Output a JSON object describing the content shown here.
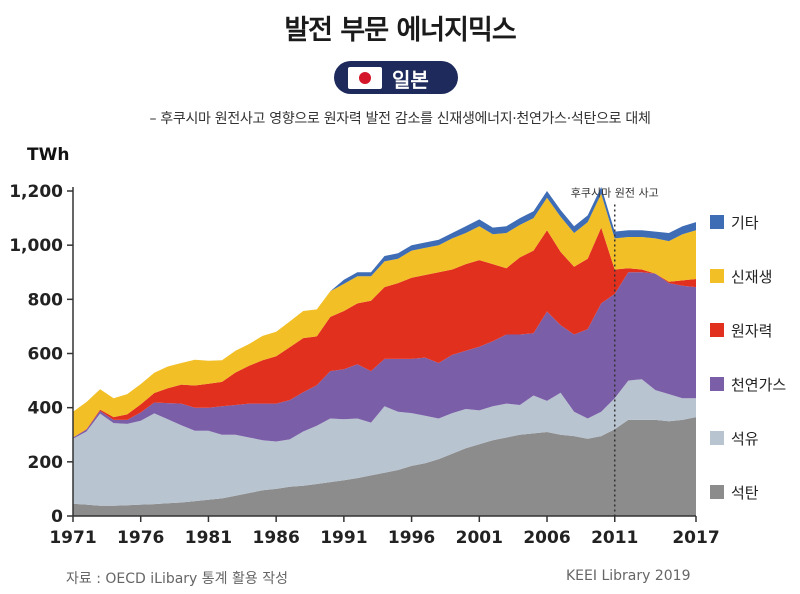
{
  "title": "발전 부문 에너지믹스",
  "badge": {
    "country": "일본",
    "flag": "japan-flag-icon"
  },
  "subtitle": "– 후쿠시마 원전사고 영향으로 원자력 발전 감소를 신재생에너지·천연가스·석탄으로 대체",
  "unit": "TWh",
  "source": "자료 : OECD iLibary  통계 활용 작성",
  "credit": "KEEI Library 2019",
  "chart_data": {
    "type": "area",
    "stacked": true,
    "x": [
      1971,
      1972,
      1973,
      1974,
      1975,
      1976,
      1977,
      1978,
      1979,
      1980,
      1981,
      1982,
      1983,
      1984,
      1985,
      1986,
      1987,
      1988,
      1989,
      1990,
      1991,
      1992,
      1993,
      1994,
      1995,
      1996,
      1997,
      1998,
      1999,
      2000,
      2001,
      2002,
      2003,
      2004,
      2005,
      2006,
      2007,
      2008,
      2009,
      2010,
      2011,
      2012,
      2013,
      2014,
      2015,
      2016,
      2017
    ],
    "xticks": [
      "1971",
      "1976",
      "1981",
      "1986",
      "1991",
      "1996",
      "2001",
      "2006",
      "2011",
      "2017"
    ],
    "ylim": [
      0,
      1200
    ],
    "yticks": [
      "0",
      "200",
      "400",
      "600",
      "800",
      "1,000",
      "1,200"
    ],
    "annotation": {
      "label": "후쿠시마 원전 사고",
      "x": 2011
    },
    "series": [
      {
        "name": "석탄",
        "color": "#8c8c8c",
        "values": [
          45,
          42,
          38,
          38,
          40,
          42,
          44,
          47,
          50,
          55,
          60,
          65,
          75,
          85,
          95,
          100,
          108,
          112,
          118,
          125,
          132,
          140,
          150,
          160,
          170,
          185,
          195,
          210,
          230,
          250,
          265,
          280,
          290,
          300,
          305,
          310,
          300,
          295,
          285,
          295,
          320,
          355,
          355,
          355,
          350,
          355,
          365
        ]
      },
      {
        "name": "석유",
        "color": "#b8c4d0",
        "values": [
          240,
          270,
          340,
          305,
          300,
          310,
          335,
          310,
          285,
          260,
          255,
          235,
          225,
          205,
          185,
          175,
          175,
          200,
          215,
          235,
          225,
          220,
          195,
          245,
          215,
          195,
          175,
          150,
          150,
          145,
          125,
          125,
          125,
          110,
          140,
          115,
          155,
          90,
          75,
          90,
          115,
          145,
          150,
          110,
          100,
          80,
          70
        ]
      },
      {
        "name": "천연가스",
        "color": "#7b5ea8",
        "values": [
          5,
          7,
          10,
          12,
          15,
          30,
          40,
          60,
          80,
          85,
          85,
          105,
          110,
          125,
          135,
          140,
          145,
          145,
          150,
          175,
          185,
          200,
          190,
          175,
          195,
          200,
          215,
          205,
          215,
          215,
          235,
          240,
          255,
          260,
          230,
          330,
          250,
          285,
          330,
          400,
          385,
          400,
          395,
          430,
          410,
          415,
          410
        ]
      },
      {
        "name": "원자력",
        "color": "#e2301f",
        "values": [
          0,
          2,
          5,
          10,
          20,
          30,
          35,
          55,
          70,
          82,
          88,
          90,
          120,
          140,
          160,
          175,
          195,
          200,
          180,
          200,
          215,
          225,
          260,
          265,
          280,
          300,
          305,
          335,
          315,
          320,
          320,
          285,
          245,
          285,
          305,
          300,
          270,
          250,
          260,
          280,
          90,
          15,
          10,
          0,
          5,
          20,
          30
        ]
      },
      {
        "name": "신재생",
        "color": "#f2bf26",
        "values": [
          95,
          100,
          75,
          70,
          75,
          75,
          75,
          80,
          80,
          95,
          85,
          80,
          80,
          80,
          90,
          90,
          95,
          100,
          100,
          95,
          100,
          100,
          90,
          95,
          90,
          100,
          100,
          100,
          115,
          115,
          125,
          110,
          130,
          120,
          120,
          120,
          130,
          125,
          135,
          125,
          115,
          115,
          120,
          130,
          150,
          170,
          180
        ]
      },
      {
        "name": "기타",
        "color": "#3e6cb5",
        "values": [
          0,
          0,
          0,
          0,
          0,
          0,
          0,
          0,
          0,
          0,
          0,
          0,
          0,
          0,
          0,
          0,
          0,
          0,
          0,
          0,
          15,
          15,
          15,
          20,
          20,
          20,
          20,
          20,
          20,
          25,
          25,
          25,
          25,
          25,
          25,
          25,
          25,
          25,
          25,
          25,
          25,
          25,
          25,
          25,
          30,
          30,
          30
        ]
      }
    ]
  }
}
